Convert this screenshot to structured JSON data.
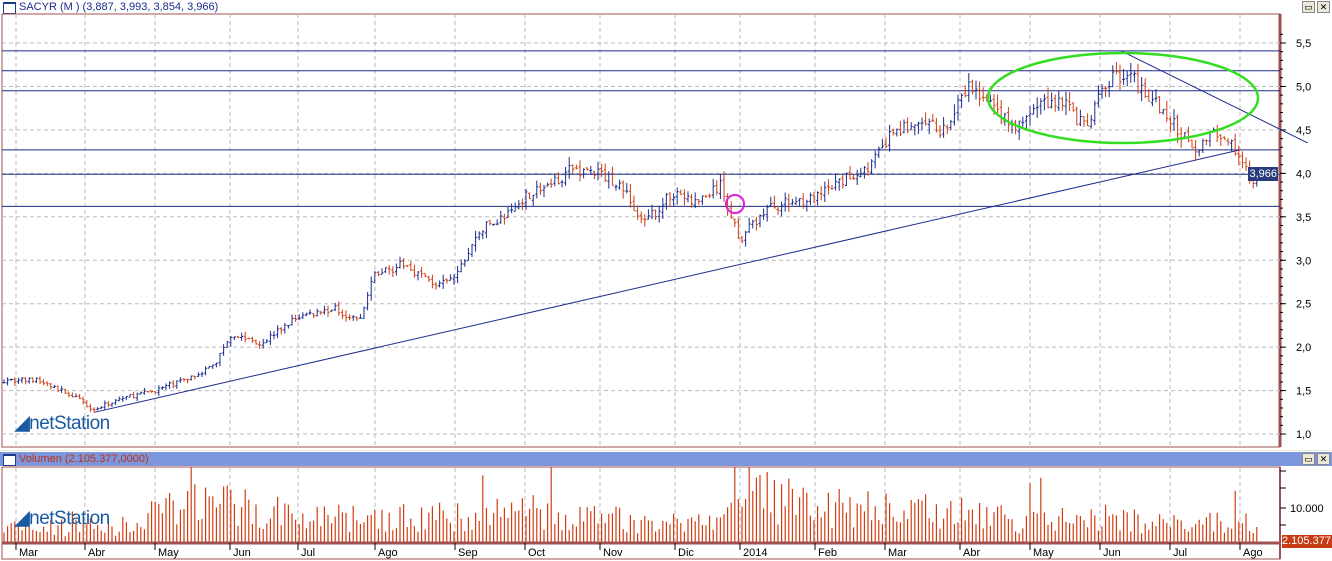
{
  "price_pane": {
    "title": "SACYR (M ) (3,887, 3,993, 3,854, 3,966)",
    "last_label": "3,966",
    "logo": "netStation"
  },
  "volume_pane": {
    "title": "Volumen (2.105.377,0000)",
    "last_label": "2.105.377",
    "logo": "netStation"
  },
  "window_buttons": {
    "maximize": "▭",
    "close": "✕"
  },
  "chart_data": [
    {
      "type": "ohlc",
      "title": "SACYR (M )",
      "ylim": [
        0.9,
        5.6
      ],
      "yticks": [
        "1,0",
        "1,5",
        "2,0",
        "2,5",
        "3,0",
        "3,5",
        "4,0",
        "4,5",
        "5,0",
        "5,5"
      ],
      "xticks": [
        "Mar",
        "Abr",
        "May",
        "Jun",
        "Jul",
        "Ago",
        "Sep",
        "Oct",
        "Nov",
        "Dic",
        "2014",
        "Feb",
        "Mar",
        "Abr",
        "May",
        "Jun",
        "Jul",
        "Ago"
      ],
      "last": {
        "open": 3.887,
        "high": 3.993,
        "low": 3.854,
        "close": 3.966
      },
      "approx_closes": [
        [
          "2013-02-22",
          1.62
        ],
        [
          "2013-03-10",
          1.62
        ],
        [
          "2013-03-25",
          1.45
        ],
        [
          "2013-04-05",
          1.28
        ],
        [
          "2013-04-15",
          1.4
        ],
        [
          "2013-05-01",
          1.5
        ],
        [
          "2013-05-15",
          1.65
        ],
        [
          "2013-05-25",
          1.8
        ],
        [
          "2013-06-01",
          2.15
        ],
        [
          "2013-06-15",
          2.05
        ],
        [
          "2013-07-01",
          2.35
        ],
        [
          "2013-07-15",
          2.45
        ],
        [
          "2013-07-25",
          2.3
        ],
        [
          "2013-08-01",
          2.85
        ],
        [
          "2013-08-12",
          2.95
        ],
        [
          "2013-08-25",
          2.7
        ],
        [
          "2013-09-01",
          2.8
        ],
        [
          "2013-09-12",
          3.35
        ],
        [
          "2013-09-25",
          3.55
        ],
        [
          "2013-10-01",
          3.75
        ],
        [
          "2013-10-10",
          3.85
        ],
        [
          "2013-10-20",
          4.05
        ],
        [
          "2013-11-01",
          4.0
        ],
        [
          "2013-11-10",
          3.85
        ],
        [
          "2013-11-18",
          3.4
        ],
        [
          "2013-12-01",
          3.8
        ],
        [
          "2013-12-10",
          3.65
        ],
        [
          "2013-12-22",
          3.85
        ],
        [
          "2014-01-01",
          3.25
        ],
        [
          "2014-01-12",
          3.6
        ],
        [
          "2014-01-25",
          3.7
        ],
        [
          "2014-02-01",
          3.7
        ],
        [
          "2014-02-12",
          3.9
        ],
        [
          "2014-02-25",
          4.1
        ],
        [
          "2014-03-05",
          4.5
        ],
        [
          "2014-03-15",
          4.55
        ],
        [
          "2014-03-25",
          4.5
        ],
        [
          "2014-04-05",
          5.0
        ],
        [
          "2014-04-15",
          4.75
        ],
        [
          "2014-04-25",
          4.5
        ],
        [
          "2014-05-05",
          4.8
        ],
        [
          "2014-05-15",
          4.85
        ],
        [
          "2014-05-25",
          4.5
        ],
        [
          "2014-06-01",
          4.9
        ],
        [
          "2014-06-08",
          5.15
        ],
        [
          "2014-06-15",
          5.1
        ],
        [
          "2014-06-25",
          4.8
        ],
        [
          "2014-07-01",
          4.6
        ],
        [
          "2014-07-12",
          4.3
        ],
        [
          "2014-07-22",
          4.5
        ],
        [
          "2014-08-01",
          4.2
        ],
        [
          "2014-08-08",
          3.75
        ],
        [
          "2014-08-12",
          3.966
        ]
      ],
      "horizontal_lines": [
        5.41,
        5.18,
        4.95,
        4.27,
        3.99,
        3.62
      ],
      "trendlines": [
        [
          [
            "2013-04-05",
            1.25
          ],
          [
            "2014-08-01",
            4.27
          ]
        ],
        [
          [
            "2014-06-10",
            5.41
          ],
          [
            "2014-08-30",
            4.35
          ]
        ]
      ],
      "annotations": [
        {
          "shape": "ellipse",
          "color": "#33dd22"
        },
        {
          "shape": "circle",
          "color": "#e020e0"
        }
      ],
      "colors": {
        "up": "#1a2c8c",
        "down": "#d03c10",
        "lines": "#1a2c8c"
      }
    },
    {
      "type": "bar",
      "title": "Volumen",
      "ytick": "10.000",
      "last": 2105377,
      "color": "#d03c10",
      "approx_levels": [
        [
          "2013-02-22",
          3000
        ],
        [
          "2013-04-15",
          3000
        ],
        [
          "2013-05-20",
          8000
        ],
        [
          "2013-06-01",
          7000
        ],
        [
          "2013-07-01",
          5000
        ],
        [
          "2013-08-01",
          4500
        ],
        [
          "2013-09-01",
          5000
        ],
        [
          "2013-10-01",
          6000
        ],
        [
          "2013-11-01",
          4500
        ],
        [
          "2013-12-20",
          3500
        ],
        [
          "2014-01-05",
          9500
        ],
        [
          "2014-02-01",
          6500
        ],
        [
          "2014-03-01",
          6500
        ],
        [
          "2014-04-01",
          5500
        ],
        [
          "2014-05-01",
          4000
        ],
        [
          "2014-06-01",
          5000
        ],
        [
          "2014-07-01",
          3500
        ],
        [
          "2014-08-12",
          4000
        ]
      ]
    }
  ]
}
